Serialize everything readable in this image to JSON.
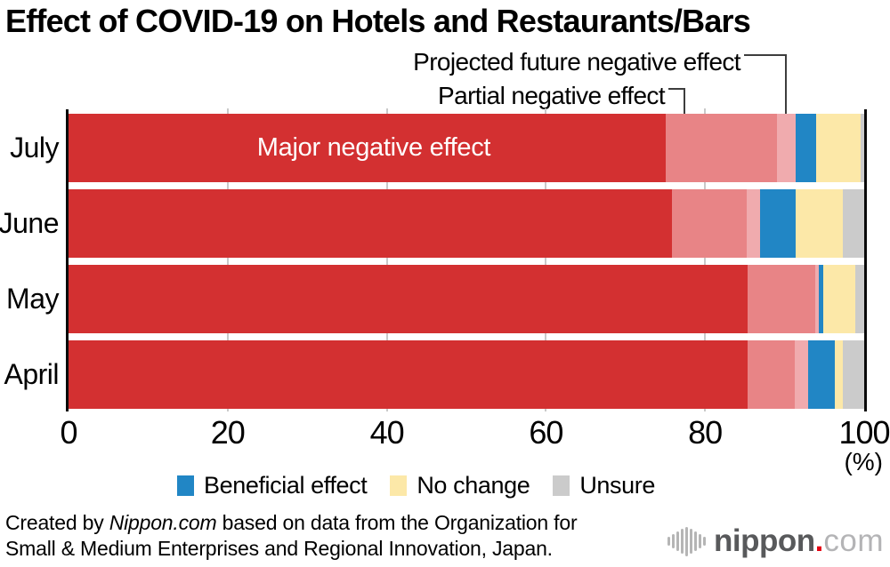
{
  "title": "Effect of COVID-19 on Hotels and Restaurants/Bars",
  "chart_data": {
    "type": "bar",
    "orientation": "horizontal",
    "stacked": true,
    "title": "Effect of COVID-19 on Hotels and Restaurants/Bars",
    "categories": [
      "July",
      "June",
      "May",
      "April"
    ],
    "series": [
      {
        "name": "Major negative effect",
        "color": "#d33031",
        "values": [
          75.0,
          75.8,
          85.3,
          85.3
        ]
      },
      {
        "name": "Partial negative effect",
        "color": "#e88486",
        "values": [
          14.0,
          9.4,
          8.6,
          6.0
        ]
      },
      {
        "name": "Projected future negative effect",
        "color": "#f0abae",
        "values": [
          2.4,
          1.7,
          0.4,
          1.6
        ]
      },
      {
        "name": "Beneficial effect",
        "color": "#2186c5",
        "values": [
          2.6,
          4.5,
          0.6,
          3.4
        ]
      },
      {
        "name": "No change",
        "color": "#fce8a8",
        "values": [
          5.6,
          5.9,
          4.0,
          1.0
        ]
      },
      {
        "name": "Unsure",
        "color": "#cbcbcb",
        "values": [
          0.4,
          2.7,
          1.1,
          2.7
        ]
      }
    ],
    "xlim": [
      0,
      100
    ],
    "x_ticks": [
      "0",
      "20",
      "40",
      "60",
      "80",
      "100"
    ],
    "x_unit": "(%)",
    "grid": "vertical gridlines at 20, 40, 60, 80",
    "legend_position": "bottom",
    "legend_entries": [
      "Beneficial effect",
      "No change",
      "Unsure"
    ],
    "in_bar_label": "Major negative effect",
    "callout_labels": [
      "Projected future negative effect",
      "Partial negative effect"
    ]
  },
  "footer": {
    "line1_pre": "Created by ",
    "line1_italic": "Nippon.com",
    "line1_post": " based on data from the Organization for",
    "line2": "Small & Medium Enterprises and Regional Innovation, Japan."
  },
  "logo": {
    "icon": "soundwave-icon",
    "name": "nippon",
    "dot": ".",
    "tld": "com",
    "accent_color": "#e60012"
  }
}
